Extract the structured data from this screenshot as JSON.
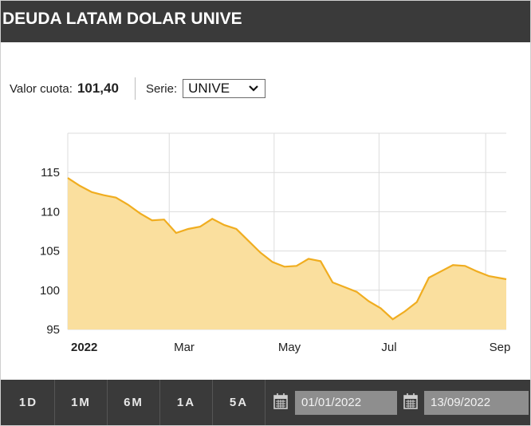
{
  "header": {
    "title": "DEUDA LATAM DOLAR UNIVE"
  },
  "info": {
    "valor_label": "Valor cuota:",
    "valor_value": "101,40",
    "serie_label": "Serie:",
    "serie_selected": "UNIVE"
  },
  "chart_data": {
    "type": "area",
    "x_ticks": [
      "2022",
      "Mar",
      "May",
      "Jul",
      "Sep"
    ],
    "y_ticks": [
      95,
      100,
      105,
      110,
      115
    ],
    "ylim": [
      95,
      120
    ],
    "x": [
      "2022-01-01",
      "2022-01-08",
      "2022-01-15",
      "2022-01-22",
      "2022-01-29",
      "2022-02-05",
      "2022-02-12",
      "2022-02-19",
      "2022-02-26",
      "2022-03-05",
      "2022-03-12",
      "2022-03-19",
      "2022-03-26",
      "2022-04-02",
      "2022-04-09",
      "2022-04-16",
      "2022-04-23",
      "2022-04-30",
      "2022-05-07",
      "2022-05-14",
      "2022-05-21",
      "2022-05-28",
      "2022-06-04",
      "2022-06-11",
      "2022-06-18",
      "2022-06-25",
      "2022-07-02",
      "2022-07-09",
      "2022-07-16",
      "2022-07-23",
      "2022-07-30",
      "2022-08-06",
      "2022-08-13",
      "2022-08-20",
      "2022-08-27",
      "2022-09-03",
      "2022-09-13"
    ],
    "values": [
      114.3,
      113.3,
      112.5,
      112.1,
      111.8,
      110.9,
      109.8,
      108.9,
      109.0,
      107.3,
      107.8,
      108.1,
      109.1,
      108.3,
      107.8,
      106.3,
      104.8,
      103.6,
      103.0,
      103.1,
      104.0,
      103.7,
      101.0,
      100.4,
      99.8,
      98.6,
      97.7,
      96.3,
      97.3,
      98.5,
      101.6,
      102.4,
      103.2,
      103.1,
      102.4,
      101.8,
      101.4
    ],
    "grid": true,
    "colors": {
      "fill": "#fadf9e",
      "line": "#f0ad20"
    }
  },
  "toolbar": {
    "ranges": [
      "1D",
      "1M",
      "6M",
      "1A",
      "5A"
    ],
    "date_from": "01/01/2022",
    "date_to": "13/09/2022"
  }
}
